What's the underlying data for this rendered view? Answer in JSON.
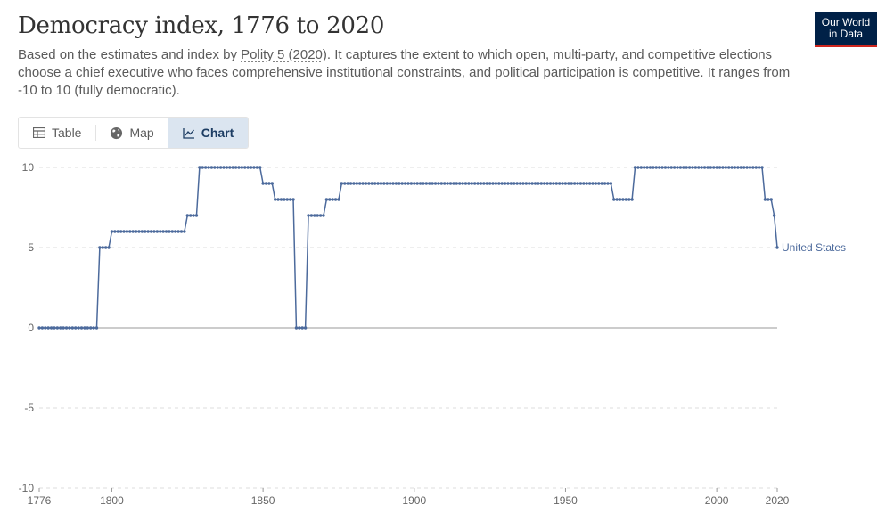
{
  "header": {
    "title": "Democracy index, 1776 to 2020",
    "subtitle_pre": "Based on the estimates and index by ",
    "subtitle_link": "Polity 5 (2020)",
    "subtitle_post": ". It captures the extent to which open, multi-party, and competitive elections choose a chief executive who faces comprehensive institutional constraints, and political participation is competitive. It ranges from -10 to 10 (fully democratic).",
    "logo_line1": "Our World",
    "logo_line2": "in Data"
  },
  "tabs": [
    {
      "label": "Table",
      "icon": "table-icon",
      "active": false
    },
    {
      "label": "Map",
      "icon": "globe-icon",
      "active": false
    },
    {
      "label": "Chart",
      "icon": "line-chart-icon",
      "active": true
    }
  ],
  "colors": {
    "series": "#4c6a9c",
    "grid": "#dddddd",
    "zero_line": "#999999",
    "logo_bg": "#002147",
    "logo_accent": "#ce261e"
  },
  "chart_data": {
    "type": "line",
    "title": "Democracy index, 1776 to 2020",
    "xlim": [
      1776,
      2020
    ],
    "ylim": [
      -10,
      10
    ],
    "x_ticks": [
      1776,
      1800,
      1850,
      1900,
      1950,
      2000,
      2020
    ],
    "y_ticks": [
      -10,
      -5,
      0,
      5,
      10
    ],
    "grid": "horizontal dashed",
    "series_label_placement": "end-of-line",
    "series": [
      {
        "name": "United States",
        "segments": [
          {
            "from": 1776,
            "to": 1795,
            "value": 0
          },
          {
            "from": 1796,
            "to": 1799,
            "value": 5
          },
          {
            "from": 1800,
            "to": 1824,
            "value": 6
          },
          {
            "from": 1825,
            "to": 1828,
            "value": 7
          },
          {
            "from": 1829,
            "to": 1849,
            "value": 10
          },
          {
            "from": 1850,
            "to": 1853,
            "value": 9
          },
          {
            "from": 1854,
            "to": 1860,
            "value": 8
          },
          {
            "from": 1861,
            "to": 1864,
            "value": 0
          },
          {
            "from": 1865,
            "to": 1870,
            "value": 7
          },
          {
            "from": 1871,
            "to": 1875,
            "value": 8
          },
          {
            "from": 1876,
            "to": 1965,
            "value": 9
          },
          {
            "from": 1966,
            "to": 1972,
            "value": 8
          },
          {
            "from": 1973,
            "to": 2015,
            "value": 10
          },
          {
            "from": 2016,
            "to": 2018,
            "value": 8
          },
          {
            "from": 2019,
            "to": 2019,
            "value": 7
          },
          {
            "from": 2020,
            "to": 2020,
            "value": 5
          }
        ]
      }
    ]
  }
}
